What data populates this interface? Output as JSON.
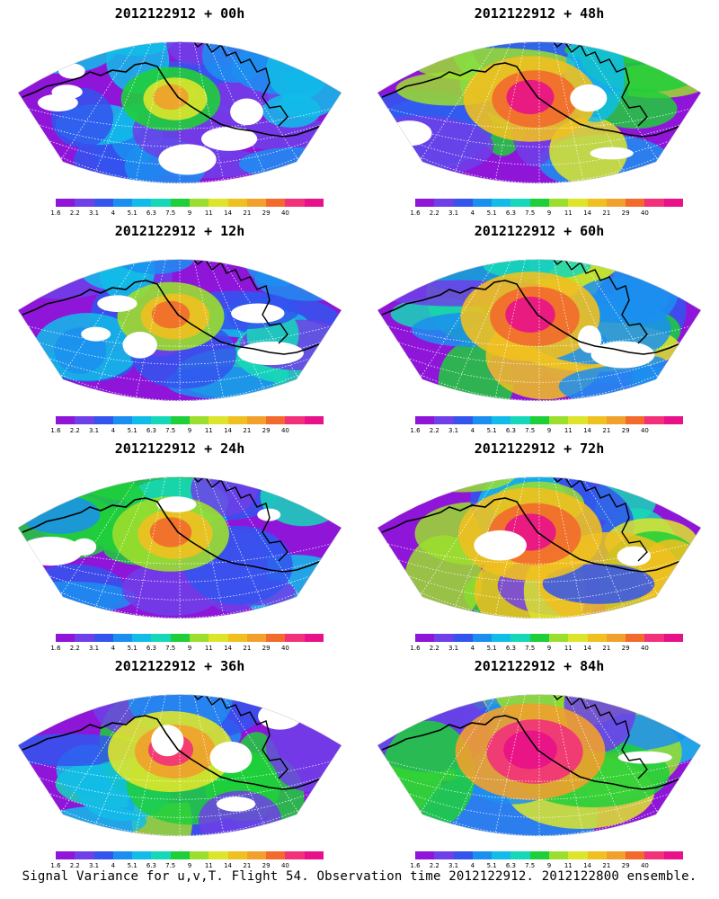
{
  "figure": {
    "caption": "Signal Variance for u,v,T. Flight 54. Observation time 2012122912. 2012122800 ensemble.",
    "colorbar": {
      "labels": [
        "1.6",
        "2.2",
        "3.1",
        "4",
        "5.1",
        "6.3",
        "7.5",
        "9",
        "11",
        "14",
        "21",
        "29",
        "40"
      ],
      "colors": [
        "#8f16d9",
        "#6f3fe8",
        "#3355ee",
        "#1b8ff0",
        "#11bde8",
        "#16d8b8",
        "#1fcf3a",
        "#9bde2d",
        "#dde52b",
        "#f0c020",
        "#f1a02c",
        "#f26a2c",
        "#f2317a",
        "#e8118a"
      ]
    },
    "panels": [
      {
        "title": "2012122912 + 00h",
        "intensity": 0.15
      },
      {
        "title": "2012122912 + 48h",
        "intensity": 0.6
      },
      {
        "title": "2012122912 + 12h",
        "intensity": 0.25
      },
      {
        "title": "2012122912 + 60h",
        "intensity": 0.68
      },
      {
        "title": "2012122912 + 24h",
        "intensity": 0.38
      },
      {
        "title": "2012122912 + 72h",
        "intensity": 0.74
      },
      {
        "title": "2012122912 + 36h",
        "intensity": 0.5
      },
      {
        "title": "2012122912 + 84h",
        "intensity": 0.82
      }
    ]
  }
}
